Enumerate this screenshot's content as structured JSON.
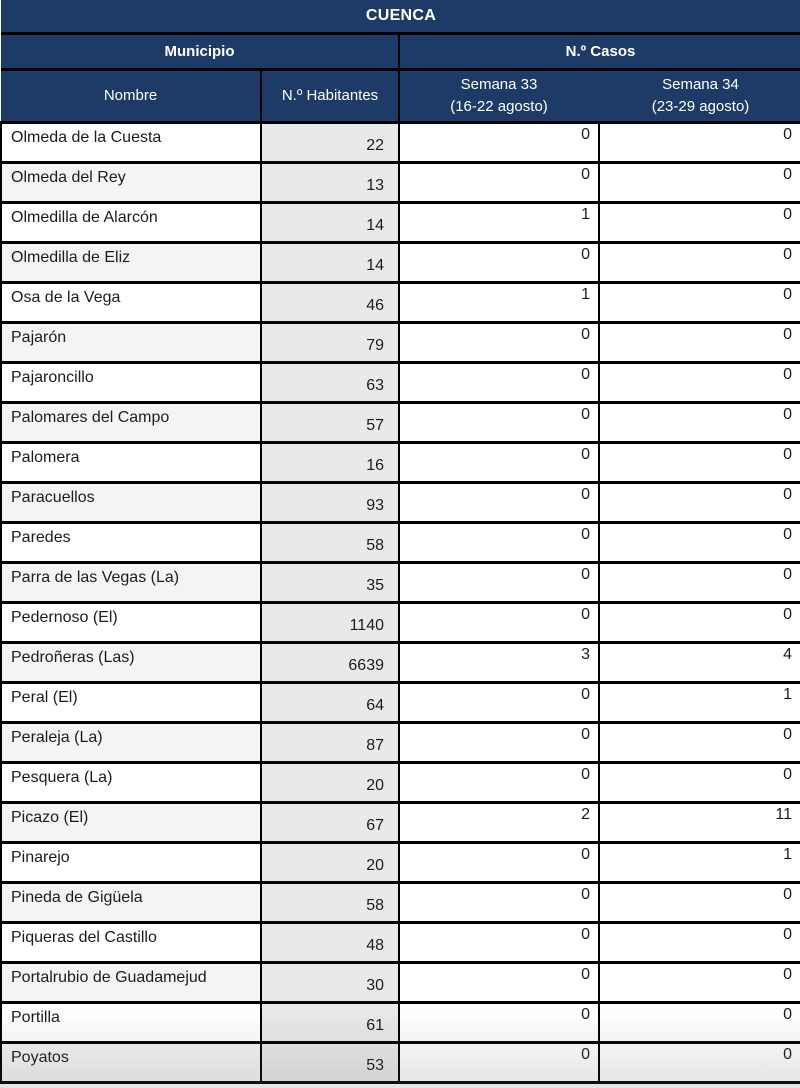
{
  "colors": {
    "header_bg": "#1e3a66",
    "header_text": "#ffffff",
    "border": "#000000",
    "habitantes_bg": "#e9e9e9",
    "row_bg": "#ffffff",
    "row_alt_bg": "#f4f4f4",
    "body_text": "#1c1c1c"
  },
  "table": {
    "title": "CUENCA",
    "group_headers": {
      "municipio": "Municipio",
      "casos": "N.º Casos"
    },
    "column_headers": {
      "nombre": "Nombre",
      "habitantes": "N.º Habitantes",
      "semana33": {
        "line1": "Semana 33",
        "line2": "(16-22 agosto)"
      },
      "semana34": {
        "line1": "Semana 34",
        "line2": "(23-29 agosto)"
      }
    },
    "rows": [
      {
        "nombre": "Olmeda de la Cuesta",
        "habitantes": "22",
        "semana33": "0",
        "semana34": "0"
      },
      {
        "nombre": "Olmeda del Rey",
        "habitantes": "13",
        "semana33": "0",
        "semana34": "0"
      },
      {
        "nombre": "Olmedilla de Alarcón",
        "habitantes": "14",
        "semana33": "1",
        "semana34": "0"
      },
      {
        "nombre": "Olmedilla de Eliz",
        "habitantes": "14",
        "semana33": "0",
        "semana34": "0"
      },
      {
        "nombre": "Osa de la Vega",
        "habitantes": "46",
        "semana33": "1",
        "semana34": "0"
      },
      {
        "nombre": "Pajarón",
        "habitantes": "79",
        "semana33": "0",
        "semana34": "0"
      },
      {
        "nombre": "Pajaroncillo",
        "habitantes": "63",
        "semana33": "0",
        "semana34": "0"
      },
      {
        "nombre": "Palomares del Campo",
        "habitantes": "57",
        "semana33": "0",
        "semana34": "0"
      },
      {
        "nombre": "Palomera",
        "habitantes": "16",
        "semana33": "0",
        "semana34": "0"
      },
      {
        "nombre": "Paracuellos",
        "habitantes": "93",
        "semana33": "0",
        "semana34": "0"
      },
      {
        "nombre": "Paredes",
        "habitantes": "58",
        "semana33": "0",
        "semana34": "0"
      },
      {
        "nombre": "Parra de las Vegas (La)",
        "habitantes": "35",
        "semana33": "0",
        "semana34": "0"
      },
      {
        "nombre": "Pedernoso (El)",
        "habitantes": "1140",
        "semana33": "0",
        "semana34": "0"
      },
      {
        "nombre": "Pedroñeras (Las)",
        "habitantes": "6639",
        "semana33": "3",
        "semana34": "4"
      },
      {
        "nombre": "Peral (El)",
        "habitantes": "64",
        "semana33": "0",
        "semana34": "1"
      },
      {
        "nombre": "Peraleja (La)",
        "habitantes": "87",
        "semana33": "0",
        "semana34": "0"
      },
      {
        "nombre": "Pesquera (La)",
        "habitantes": "20",
        "semana33": "0",
        "semana34": "0"
      },
      {
        "nombre": "Picazo (El)",
        "habitantes": "67",
        "semana33": "2",
        "semana34": "11"
      },
      {
        "nombre": "Pinarejo",
        "habitantes": "20",
        "semana33": "0",
        "semana34": "1"
      },
      {
        "nombre": "Pineda de Gigüela",
        "habitantes": "58",
        "semana33": "0",
        "semana34": "0"
      },
      {
        "nombre": "Piqueras del Castillo",
        "habitantes": "48",
        "semana33": "0",
        "semana34": "0"
      },
      {
        "nombre": "Portalrubio de Guadamejud",
        "habitantes": "30",
        "semana33": "0",
        "semana34": "0"
      },
      {
        "nombre": "Portilla",
        "habitantes": "61",
        "semana33": "0",
        "semana34": "0"
      },
      {
        "nombre": "Poyatos",
        "habitantes": "53",
        "semana33": "0",
        "semana34": "0"
      }
    ]
  }
}
